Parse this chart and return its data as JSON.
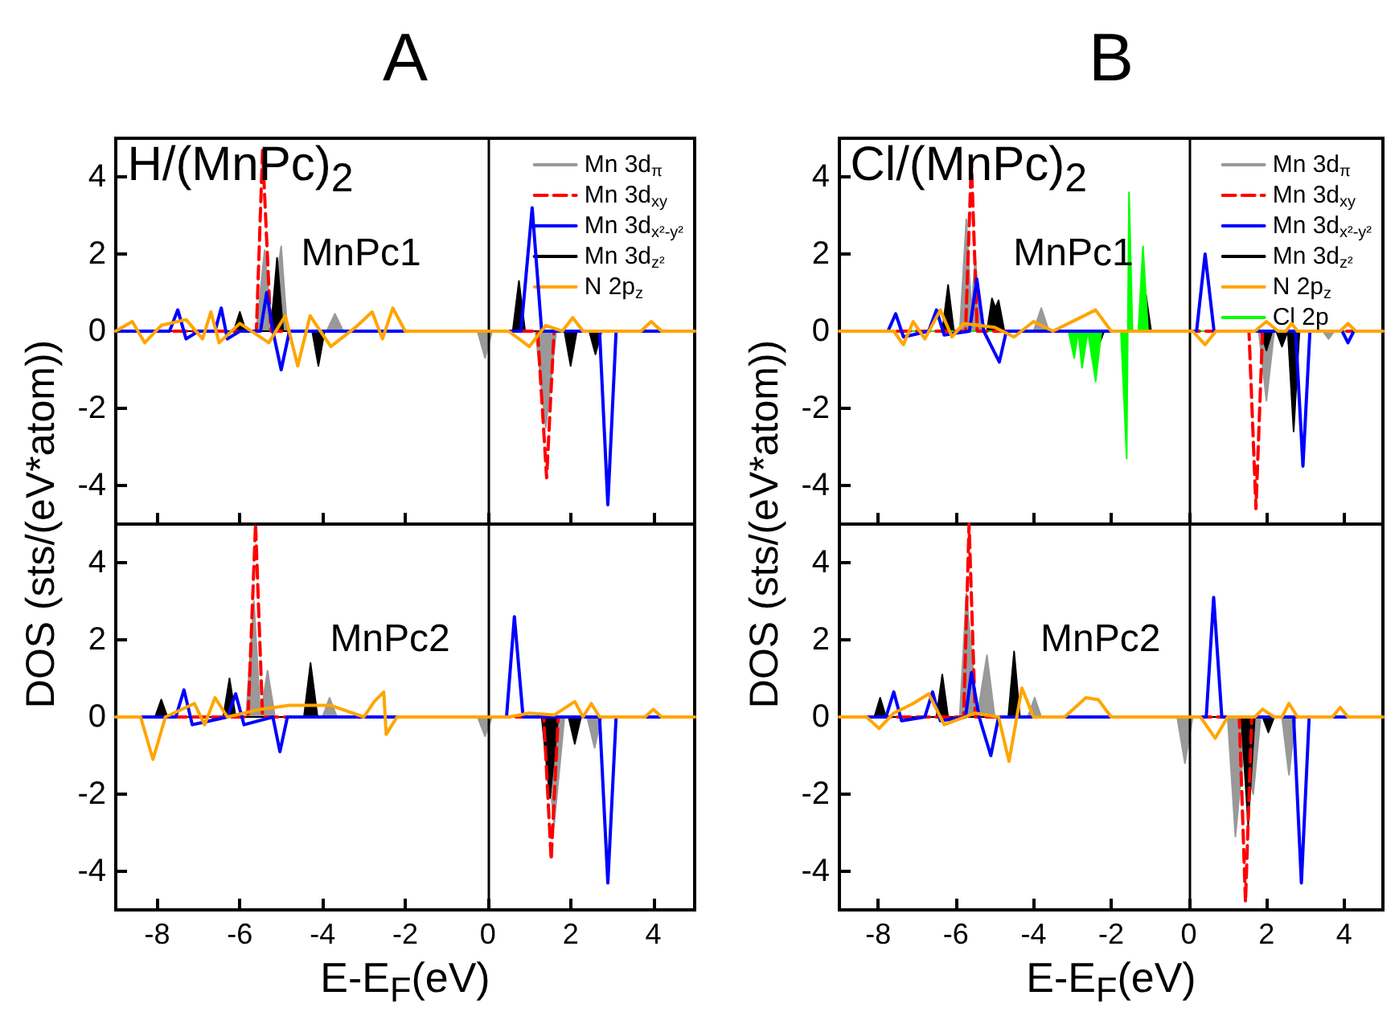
{
  "chart_data": [
    {
      "type": "line",
      "title": "A",
      "ylabel": "DOS (sts/(eV*atom))",
      "annotations": [
        "H/(MnPc)$_{2}$",
        "MnPc1"
      ],
      "xlim": [
        -9,
        5
      ],
      "ylim": [
        -5,
        5
      ],
      "xticks": [
        -8,
        -6,
        -4,
        -2,
        0,
        2,
        4
      ],
      "yticks": [
        -4,
        -2,
        0,
        2,
        4
      ],
      "tick_labels": "y",
      "legend": "top right",
      "marker": "none",
      "ref_lines": [
        {
          "axis": "x",
          "value": 0,
          "color": "#000000"
        }
      ],
      "series": [
        {
          "name": "Mn 3d$_{π}$",
          "type": "area",
          "color": "#999999",
          "x": [
            -9,
            -5.6,
            -5.4,
            -5.25,
            -5.0,
            -4.85,
            -3.9,
            -3.7,
            -3.5,
            -0.25,
            -0.07,
            0.1,
            1.15,
            1.4,
            1.65,
            5
          ],
          "values": [
            0,
            0,
            2.1,
            0.3,
            2.2,
            0,
            0,
            0.45,
            0,
            0,
            -0.7,
            0,
            0,
            -2.5,
            0,
            0
          ]
        },
        {
          "name": "Mn 3d$_{xy}$",
          "line_style": "dashed",
          "color": "#ff0000",
          "x": [
            -9,
            -5.6,
            -5.45,
            -5.25,
            1.2,
            1.42,
            1.6,
            5
          ],
          "values": [
            0,
            0,
            4.7,
            0,
            0,
            -3.8,
            0,
            0
          ]
        },
        {
          "name": "Mn 3d$_{x²-y²}$",
          "color": "#0000ff",
          "x": [
            -9,
            -7.7,
            -7.5,
            -7.3,
            -7.0,
            -6.6,
            -6.45,
            -6.3,
            -6.0,
            -5.5,
            -5.35,
            -5.2,
            -5.0,
            -4.8,
            0.8,
            1.07,
            1.3,
            2.7,
            2.9,
            3.1,
            5
          ],
          "values": [
            0,
            0,
            0.55,
            -0.2,
            0,
            0,
            0.6,
            -0.2,
            0,
            0,
            1.0,
            0,
            -1.0,
            0,
            0,
            3.2,
            0,
            0,
            -4.5,
            0,
            0
          ]
        },
        {
          "name": "Mn 3d$_{z²}$",
          "type": "area",
          "color": "#000000",
          "x": [
            -9,
            -6.15,
            -6.0,
            -5.85,
            -5.25,
            -5.1,
            -4.95,
            -4.25,
            -4.1,
            -3.95,
            0.6,
            0.75,
            0.9,
            1.85,
            2.0,
            2.15,
            2.45,
            2.6,
            2.75,
            5
          ],
          "values": [
            0,
            0,
            0.5,
            0,
            0,
            1.9,
            0,
            0,
            -0.9,
            0,
            0,
            1.3,
            0,
            0,
            -0.9,
            0,
            0,
            -0.6,
            0,
            0
          ]
        },
        {
          "name": "N 2p$_{z}$",
          "color": "#ffa500",
          "x": [
            -9,
            -8.6,
            -8.3,
            -7.9,
            -7.3,
            -6.9,
            -6.7,
            -6.5,
            -6.0,
            -5.3,
            -4.9,
            -4.6,
            -4.3,
            -3.8,
            -3.2,
            -2.8,
            -2.55,
            -2.3,
            -2.0,
            0.5,
            1.0,
            1.4,
            1.8,
            2.05,
            2.3,
            3.7,
            3.95,
            4.2,
            5
          ],
          "values": [
            0,
            0.25,
            -0.3,
            0.15,
            0.3,
            -0.2,
            0.5,
            -0.3,
            0.2,
            -0.3,
            0.4,
            -0.9,
            0.4,
            -0.4,
            0.1,
            0.5,
            -0.2,
            0.6,
            0,
            0,
            -0.4,
            0.15,
            0,
            0.35,
            0,
            0,
            0.25,
            0,
            0
          ]
        }
      ]
    },
    {
      "type": "line",
      "xlabel": "E-E$_{F}$(eV)",
      "annotations": [
        "MnPc2"
      ],
      "xlim": [
        -9,
        5
      ],
      "ylim": [
        -5,
        5
      ],
      "xticks": [
        -8,
        -6,
        -4,
        -2,
        0,
        2,
        4
      ],
      "yticks": [
        -4,
        -2,
        0,
        2,
        4
      ],
      "marker": "none",
      "ref_lines": [
        {
          "axis": "x",
          "value": 0,
          "color": "#000000"
        }
      ],
      "series": [
        {
          "type": "area",
          "color": "#999999",
          "x": [
            -9,
            -5.85,
            -5.66,
            -5.5,
            -5.33,
            -5.15,
            -4.0,
            -3.83,
            -3.65,
            -0.25,
            -0.07,
            0.1,
            1.35,
            1.6,
            1.85,
            2.4,
            2.58,
            2.75,
            5
          ],
          "values": [
            0,
            0,
            3.0,
            0,
            1.2,
            0,
            0,
            0.5,
            0,
            0,
            -0.5,
            0,
            0,
            -2.8,
            0,
            0,
            -0.8,
            0,
            0
          ]
        },
        {
          "line_style": "dashed",
          "color": "#ff0000",
          "x": [
            -9,
            -5.8,
            -5.62,
            -5.45,
            1.35,
            1.53,
            1.7,
            5
          ],
          "values": [
            0,
            0,
            5.0,
            0,
            0,
            -3.7,
            0,
            0
          ]
        },
        {
          "color": "#0000ff",
          "x": [
            -9,
            -7.55,
            -7.35,
            -7.15,
            -6.3,
            -6.1,
            -5.9,
            -5.2,
            -5.03,
            -4.85,
            0.45,
            0.64,
            0.85,
            2.7,
            2.9,
            3.1,
            5
          ],
          "values": [
            0,
            0,
            0.7,
            -0.2,
            0,
            0.6,
            -0.2,
            0,
            -0.9,
            0,
            0,
            2.6,
            0,
            0,
            -4.3,
            0,
            0
          ]
        },
        {
          "type": "area",
          "color": "#000000",
          "x": [
            -9,
            -8.05,
            -7.9,
            -7.75,
            -6.4,
            -6.25,
            -6.1,
            -4.45,
            -4.29,
            -4.12,
            1.3,
            1.5,
            1.7,
            1.95,
            2.1,
            2.25,
            5
          ],
          "values": [
            0,
            0,
            0.45,
            0,
            0,
            1.0,
            0,
            0,
            1.4,
            0,
            0,
            -2.1,
            0,
            0,
            -0.7,
            0,
            0
          ]
        },
        {
          "color": "#ffa500",
          "x": [
            -9,
            -8.4,
            -8.1,
            -7.8,
            -7.1,
            -6.85,
            -6.6,
            -6.3,
            -5.5,
            -4.8,
            -4.3,
            -3.8,
            -3.0,
            -2.75,
            -2.52,
            -2.46,
            -2.2,
            0.5,
            1.0,
            1.6,
            2.1,
            2.3,
            2.5,
            2.7,
            3.8,
            4.0,
            4.2,
            5
          ],
          "values": [
            0,
            0,
            -1.1,
            0,
            0.35,
            -0.2,
            0.5,
            0,
            0.2,
            0.3,
            0.3,
            0.3,
            0,
            0.4,
            0.65,
            -0.45,
            0,
            0,
            0.1,
            0.05,
            0.4,
            0,
            0.35,
            0,
            0,
            0.2,
            0,
            0
          ]
        }
      ]
    },
    {
      "type": "line",
      "title": "B",
      "ylabel": "DOS (sts/(eV*atom))",
      "annotations": [
        "Cl/(MnPc)$_{2}$",
        "MnPc1"
      ],
      "xlim": [
        -9,
        5
      ],
      "ylim": [
        -5,
        5
      ],
      "xticks": [
        -8,
        -6,
        -4,
        -2,
        0,
        2,
        4
      ],
      "yticks": [
        -4,
        -2,
        0,
        2,
        4
      ],
      "tick_labels": "y",
      "legend": "top right",
      "marker": "none",
      "ref_lines": [
        {
          "axis": "x",
          "value": 0,
          "color": "#000000"
        }
      ],
      "series": [
        {
          "name": "Mn 3d$_{π}$",
          "type": "area",
          "color": "#999999",
          "x": [
            -9,
            -5.9,
            -5.73,
            -5.6,
            -5.5,
            -5.35,
            -4.0,
            -3.8,
            -3.6,
            1.8,
            2.0,
            2.2,
            3.45,
            3.6,
            3.75,
            5
          ],
          "values": [
            0,
            0,
            2.9,
            0.5,
            1.9,
            0,
            0,
            0.6,
            0,
            0,
            -1.8,
            0,
            0,
            -0.2,
            0,
            0
          ]
        },
        {
          "name": "Mn 3d$_{xy}$",
          "line_style": "dashed",
          "color": "#ff0000",
          "x": [
            -9,
            -5.75,
            -5.6,
            -5.45,
            1.55,
            1.73,
            1.9,
            5
          ],
          "values": [
            0,
            0,
            4.4,
            0,
            0,
            -4.6,
            0,
            0
          ]
        },
        {
          "name": "Mn 3d$_{x²-y²}$",
          "color": "#0000ff",
          "x": [
            -9,
            -7.75,
            -7.55,
            -7.35,
            -6.7,
            -6.5,
            -6.3,
            -5.65,
            -5.46,
            -5.28,
            -4.88,
            -4.7,
            0.2,
            0.42,
            0.65,
            2.75,
            2.94,
            3.12,
            3.95,
            4.1,
            4.25,
            5
          ],
          "values": [
            0,
            0,
            0.45,
            -0.15,
            0,
            0.55,
            -0.1,
            0,
            1.35,
            0,
            -0.8,
            0,
            0,
            2.0,
            0,
            0,
            -3.5,
            0,
            0,
            -0.3,
            0,
            0
          ]
        },
        {
          "name": "Mn 3d$_{z²}$",
          "type": "area",
          "color": "#000000",
          "x": [
            -9,
            -6.35,
            -6.2,
            -6.05,
            -5.2,
            -5.07,
            -4.98,
            -4.9,
            -4.75,
            -2.48,
            -2.33,
            -2.18,
            -1.27,
            -1.12,
            -0.97,
            1.85,
            2.0,
            2.15,
            2.25,
            2.4,
            2.55,
            2.7,
            2.85,
            5
          ],
          "values": [
            0,
            0,
            1.2,
            0,
            0,
            0.85,
            0.6,
            0.8,
            0,
            0,
            -0.4,
            0,
            0,
            1.05,
            0,
            0,
            -0.5,
            0,
            0,
            -0.4,
            0,
            -2.6,
            0,
            0
          ]
        },
        {
          "name": "N 2p$_{z}$",
          "color": "#ffa500",
          "x": [
            -9,
            -7.6,
            -7.35,
            -7.1,
            -6.8,
            -6.4,
            -6.1,
            -5.8,
            -5.0,
            -4.5,
            -4.0,
            -3.5,
            -2.9,
            -2.4,
            -2.0,
            0.1,
            0.42,
            0.7,
            1.7,
            2.0,
            2.3,
            2.5,
            2.65,
            2.8,
            3.9,
            4.1,
            4.3,
            5
          ],
          "values": [
            0,
            0,
            -0.35,
            0.25,
            -0.2,
            0.55,
            -0.15,
            0.2,
            0.1,
            -0.15,
            0.25,
            0,
            0.3,
            0.55,
            0,
            0,
            -0.35,
            0,
            0,
            0.25,
            0,
            0,
            0.2,
            0,
            0,
            0.2,
            0,
            0
          ]
        },
        {
          "name": "Cl 2p",
          "type": "area",
          "color": "#00ff00",
          "x": [
            -9,
            -3.1,
            -2.95,
            -2.85,
            -2.75,
            -2.6,
            -2.4,
            -2.25,
            -1.75,
            -1.6,
            -1.54,
            -1.45,
            -1.3,
            -1.18,
            -1.05,
            5
          ],
          "values": [
            0,
            0,
            -0.7,
            0,
            -0.95,
            0,
            -1.3,
            0,
            0,
            -3.3,
            3.6,
            0,
            0,
            2.2,
            0,
            0
          ]
        }
      ]
    },
    {
      "type": "line",
      "xlabel": "E-E$_{F}$(eV)",
      "annotations": [
        "MnPc2"
      ],
      "xlim": [
        -9,
        5
      ],
      "ylim": [
        -5,
        5
      ],
      "xticks": [
        -8,
        -6,
        -4,
        -2,
        0,
        2,
        4
      ],
      "yticks": [
        -4,
        -2,
        0,
        2,
        4
      ],
      "marker": "none",
      "ref_lines": [
        {
          "axis": "x",
          "value": 0,
          "color": "#000000"
        }
      ],
      "series": [
        {
          "type": "area",
          "color": "#999999",
          "x": [
            -9,
            -5.9,
            -5.73,
            -5.45,
            -5.2,
            -5.0,
            -4.15,
            -3.97,
            -3.8,
            -0.3,
            -0.1,
            0.1,
            1.0,
            1.2,
            1.4,
            1.66,
            1.85,
            2.4,
            2.58,
            2.75,
            5
          ],
          "values": [
            0,
            0,
            3.2,
            0,
            1.6,
            0,
            0,
            0.5,
            0,
            0,
            -1.2,
            0,
            0,
            -3.1,
            -1.0,
            -2.0,
            0,
            0,
            -1.5,
            0,
            0
          ]
        },
        {
          "line_style": "dashed",
          "color": "#ff0000",
          "x": [
            -9,
            -5.8,
            -5.66,
            -5.5,
            1.3,
            1.46,
            1.62,
            5
          ],
          "values": [
            0,
            0,
            5.0,
            0,
            0,
            -4.8,
            0,
            0
          ]
        },
        {
          "color": "#0000ff",
          "x": [
            -9,
            -7.8,
            -7.6,
            -7.4,
            -6.8,
            -6.6,
            -6.4,
            -5.75,
            -5.6,
            -5.4,
            -5.1,
            -4.9,
            0.45,
            0.64,
            0.85,
            2.7,
            2.9,
            3.1,
            5
          ],
          "values": [
            0,
            0,
            0.65,
            -0.1,
            0,
            0.65,
            -0.1,
            0,
            1.15,
            0,
            -1.0,
            0,
            0,
            3.1,
            0,
            0,
            -4.3,
            0,
            0
          ]
        },
        {
          "type": "area",
          "color": "#000000",
          "x": [
            -9,
            -8.1,
            -7.95,
            -7.8,
            -6.5,
            -6.35,
            -6.2,
            -4.65,
            -4.5,
            -4.35,
            1.35,
            1.53,
            1.7,
            1.9,
            2.05,
            2.2,
            5
          ],
          "values": [
            0,
            0,
            0.5,
            0,
            0,
            1.1,
            0,
            0,
            1.7,
            0,
            0,
            -2.8,
            0,
            0,
            -0.4,
            0,
            0
          ]
        },
        {
          "color": "#ffa500",
          "x": [
            -9,
            -8.3,
            -7.98,
            -7.6,
            -7.1,
            -6.7,
            -6.3,
            -5.5,
            -4.9,
            -4.63,
            -4.3,
            -4.0,
            -3.2,
            -2.65,
            -2.33,
            -2.0,
            0.3,
            0.68,
            1.0,
            1.7,
            1.9,
            2.2,
            2.4,
            2.58,
            2.8,
            3.7,
            3.9,
            4.1,
            5
          ],
          "values": [
            0,
            0,
            -0.3,
            0.1,
            0.35,
            0.6,
            -0.2,
            0.1,
            0,
            -1.15,
            0.75,
            0,
            0,
            0.5,
            0.45,
            0,
            0,
            -0.55,
            0,
            0,
            0.2,
            0,
            0,
            0.35,
            0,
            0,
            0.25,
            0,
            0
          ]
        }
      ]
    }
  ]
}
